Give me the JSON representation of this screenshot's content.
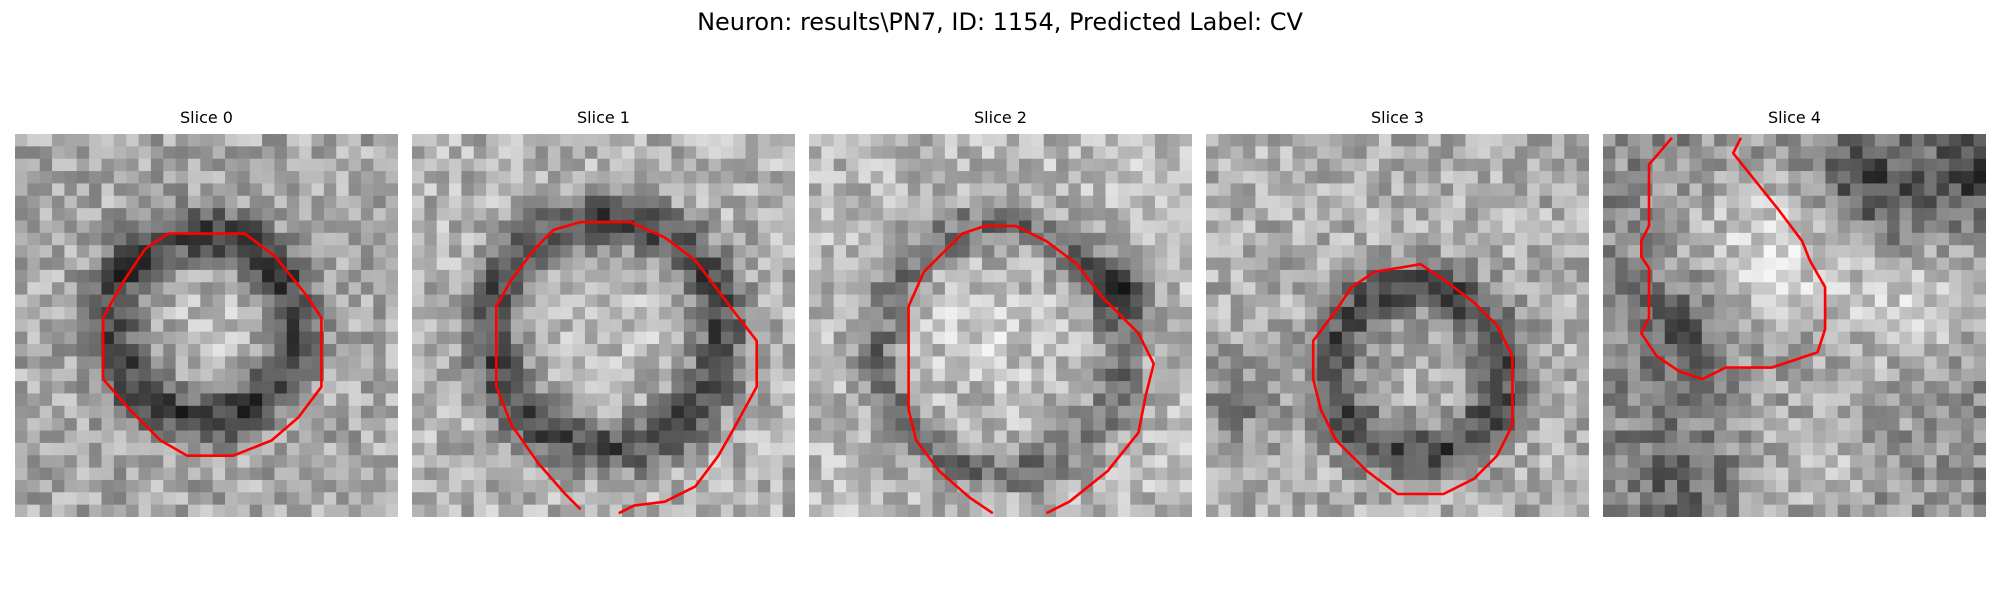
{
  "figure": {
    "title": "Neuron: results\\PN7, ID: 1154, Predicted Label: CV"
  },
  "slices": [
    {
      "title": "Slice 0"
    },
    {
      "title": "Slice 1"
    },
    {
      "title": "Slice 2"
    },
    {
      "title": "Slice 3"
    },
    {
      "title": "Slice 4"
    }
  ],
  "colors": {
    "contour": "#ff0000",
    "colormap": "grayscale"
  }
}
